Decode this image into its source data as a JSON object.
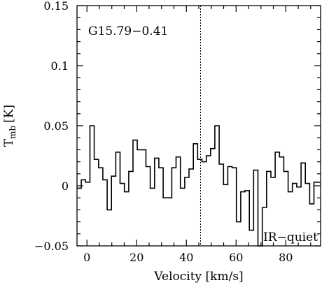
{
  "chart_data": {
    "type": "line",
    "style": "step",
    "source_label": "G15.79−0.41",
    "corner_label": "IR−quiet",
    "xlabel": "Velocity [km/s]",
    "ylabel_main": "T",
    "ylabel_sub": "mb",
    "ylabel_unit": "[K]",
    "xlim": [
      -4,
      94
    ],
    "ylim": [
      -0.05,
      0.15
    ],
    "xticks": [
      0,
      20,
      40,
      60,
      80
    ],
    "yticks": [
      -0.05,
      0,
      0.05,
      0.1,
      0.15
    ],
    "ytick_labels": [
      "−0.05",
      "0",
      "0.05",
      "0.1",
      "0.15"
    ],
    "vline_x": 45.7,
    "grid": false,
    "x": [
      -4,
      -2.27,
      -0.53,
      1.2,
      2.93,
      4.67,
      6.4,
      8.13,
      9.87,
      11.6,
      13.33,
      15.07,
      16.8,
      18.53,
      20.27,
      22,
      23.73,
      25.47,
      27.2,
      28.93,
      30.67,
      32.4,
      34.13,
      35.87,
      37.6,
      39.33,
      41.07,
      42.8,
      44.53,
      46.27,
      48,
      49.73,
      51.47,
      53.2,
      54.93,
      56.67,
      58.4,
      60.13,
      61.87,
      63.6,
      65.33,
      67.07,
      68.8,
      70.53,
      72.27,
      74,
      75.73,
      77.47,
      79.2,
      80.93,
      82.67,
      84.4,
      86.13,
      87.87,
      89.6,
      91.33,
      93.07
    ],
    "y": [
      -0.002,
      0.005,
      0.003,
      0.05,
      0.022,
      0.015,
      0.005,
      -0.02,
      0.008,
      0.028,
      0.002,
      -0.005,
      0.012,
      0.038,
      0.03,
      0.03,
      0.016,
      -0.002,
      0.023,
      0.015,
      -0.01,
      -0.01,
      0.015,
      0.024,
      -0.002,
      0.007,
      0.014,
      0.035,
      0.022,
      0.02,
      0.025,
      0.031,
      0.05,
      0.018,
      0.001,
      0.016,
      0.015,
      -0.03,
      -0.005,
      -0.004,
      -0.037,
      0.013,
      -0.05,
      -0.018,
      0.012,
      0.007,
      0.028,
      0.024,
      0.012,
      -0.005,
      0.002,
      -0.001,
      0.019,
      0.002,
      -0.015,
      0.003,
      0.003
    ]
  }
}
